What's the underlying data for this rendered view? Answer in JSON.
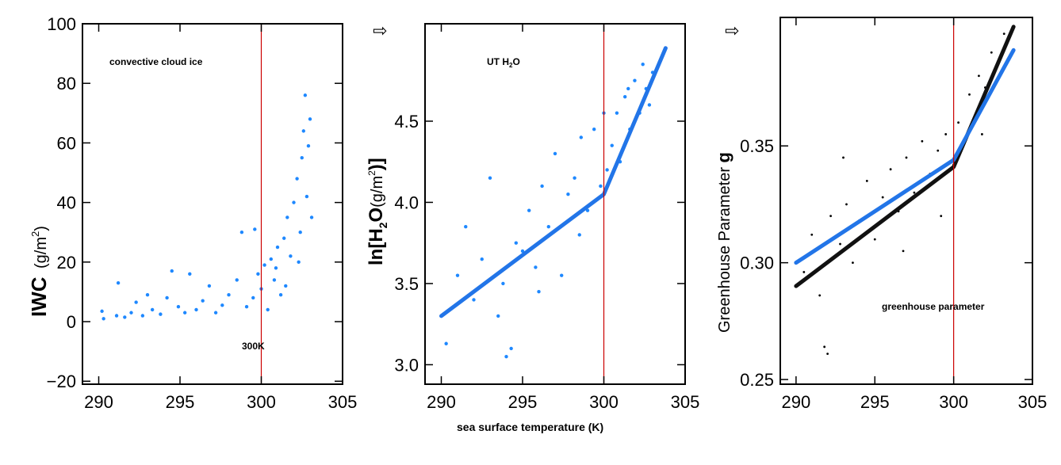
{
  "colors": {
    "scatter_blue": "#1e88ff",
    "fit_blue": "#2275e8",
    "fit_black": "#111111",
    "ref_line": "#cc0000",
    "points_black": "#000000"
  },
  "chart_data": [
    {
      "type": "scatter",
      "title": "",
      "annotation": "convective cloud ice",
      "ref_label": "300K",
      "ylabel_main": "IWC",
      "ylabel_unit": "(g/m",
      "ylabel_sup": "2",
      "ylabel_close": ")",
      "xlabel": "",
      "xlim": [
        289,
        305
      ],
      "ylim": [
        -21,
        100
      ],
      "xticks": [
        290,
        295,
        300,
        305
      ],
      "xtick_labels": [
        "290",
        "295",
        "300",
        "305"
      ],
      "yticks": [
        -20,
        0,
        20,
        40,
        60,
        80,
        100
      ],
      "ytick_labels": [
        "−20",
        "0",
        "20",
        "40",
        "60",
        "80",
        "100"
      ],
      "ref_x": 300,
      "series": [
        {
          "marker": "blue-dot",
          "points": [
            [
              290.2,
              3.5
            ],
            [
              290.3,
              1.0
            ],
            [
              291.2,
              13.0
            ],
            [
              291.1,
              2.0
            ],
            [
              291.6,
              1.5
            ],
            [
              292.0,
              3.0
            ],
            [
              292.3,
              6.5
            ],
            [
              292.7,
              2.0
            ],
            [
              293.0,
              9.0
            ],
            [
              293.3,
              4.0
            ],
            [
              293.8,
              2.5
            ],
            [
              294.2,
              8.0
            ],
            [
              294.5,
              17.0
            ],
            [
              294.9,
              5.0
            ],
            [
              295.3,
              3.0
            ],
            [
              295.6,
              16.0
            ],
            [
              296.0,
              4.0
            ],
            [
              296.4,
              7.0
            ],
            [
              296.8,
              12.0
            ],
            [
              297.2,
              3.0
            ],
            [
              297.6,
              5.5
            ],
            [
              298.0,
              9.0
            ],
            [
              298.5,
              14.0
            ],
            [
              298.8,
              30.0
            ],
            [
              299.1,
              5.0
            ],
            [
              299.5,
              8.0
            ],
            [
              299.8,
              16.0
            ],
            [
              300.0,
              11.0
            ],
            [
              300.2,
              19.0
            ],
            [
              300.4,
              4.0
            ],
            [
              300.6,
              21.0
            ],
            [
              300.8,
              14.0
            ],
            [
              301.0,
              25.0
            ],
            [
              301.2,
              9.0
            ],
            [
              301.4,
              28.0
            ],
            [
              301.6,
              35.0
            ],
            [
              301.8,
              22.0
            ],
            [
              302.0,
              40.0
            ],
            [
              302.2,
              48.0
            ],
            [
              302.4,
              30.0
            ],
            [
              302.5,
              55.0
            ],
            [
              302.6,
              64.0
            ],
            [
              302.7,
              76.0
            ],
            [
              302.8,
              42.0
            ],
            [
              302.9,
              59.0
            ],
            [
              303.0,
              68.0
            ],
            [
              303.1,
              35.0
            ],
            [
              299.6,
              31.0
            ],
            [
              300.9,
              18.0
            ],
            [
              301.5,
              12.0
            ],
            [
              302.3,
              20.0
            ]
          ]
        }
      ]
    },
    {
      "type": "scatter",
      "title": "",
      "annotation": "UT H",
      "annotation_sub": "2",
      "annotation_end": "O",
      "ylabel_a": "ln[H",
      "ylabel_sub": "2",
      "ylabel_b": "O",
      "ylabel_c": "(g/m",
      "ylabel_sup": "2",
      "ylabel_d": ")]",
      "xlabel": "sea surface temperature (K)",
      "xlim": [
        289,
        305
      ],
      "ylim": [
        2.88,
        5.1
      ],
      "xticks": [
        290,
        295,
        300,
        305
      ],
      "xtick_labels": [
        "290",
        "295",
        "300",
        "305"
      ],
      "yticks": [
        3.0,
        3.5,
        4.0,
        4.5
      ],
      "ytick_labels": [
        "3.0",
        "3.5",
        "4.0",
        "4.5"
      ],
      "ref_x": 300,
      "series": [
        {
          "name": "",
          "marker": "blue-dot",
          "points": [
            [
              290.3,
              3.13
            ],
            [
              291.0,
              3.55
            ],
            [
              291.5,
              3.85
            ],
            [
              292.0,
              3.4
            ],
            [
              292.5,
              3.65
            ],
            [
              293.0,
              4.15
            ],
            [
              293.5,
              3.3
            ],
            [
              294.0,
              3.05
            ],
            [
              294.3,
              3.1
            ],
            [
              294.6,
              3.75
            ],
            [
              295.0,
              3.7
            ],
            [
              295.4,
              3.95
            ],
            [
              295.8,
              3.6
            ],
            [
              296.2,
              4.1
            ],
            [
              296.6,
              3.85
            ],
            [
              297.0,
              4.3
            ],
            [
              297.4,
              3.55
            ],
            [
              297.8,
              4.05
            ],
            [
              298.2,
              4.15
            ],
            [
              298.6,
              4.4
            ],
            [
              299.0,
              3.95
            ],
            [
              299.4,
              4.45
            ],
            [
              299.8,
              4.1
            ],
            [
              300.0,
              4.55
            ],
            [
              300.2,
              4.2
            ],
            [
              300.5,
              4.35
            ],
            [
              300.8,
              4.55
            ],
            [
              301.0,
              4.25
            ],
            [
              301.3,
              4.65
            ],
            [
              301.6,
              4.45
            ],
            [
              301.9,
              4.75
            ],
            [
              302.2,
              4.55
            ],
            [
              302.4,
              4.85
            ],
            [
              302.6,
              4.7
            ],
            [
              302.8,
              4.6
            ],
            [
              303.0,
              4.8
            ],
            [
              293.8,
              3.5
            ],
            [
              296.0,
              3.45
            ],
            [
              298.5,
              3.8
            ],
            [
              301.5,
              4.7
            ]
          ]
        },
        {
          "name": "",
          "marker": "blue-fit",
          "points": [
            [
              290.0,
              3.3
            ],
            [
              300.0,
              4.05
            ],
            [
              303.8,
              4.95
            ]
          ]
        }
      ]
    },
    {
      "type": "scatter",
      "title": "",
      "annotation": "greenhouse parameter",
      "ylabel": "Greenhouse Parameter ",
      "ylabel_bold": "g",
      "xlabel": "",
      "xlim": [
        289,
        305
      ],
      "ylim": [
        0.248,
        0.405
      ],
      "xticks": [
        290,
        295,
        300,
        305
      ],
      "xtick_labels": [
        "290",
        "295",
        "300",
        "305"
      ],
      "yticks": [
        0.25,
        0.3,
        0.35
      ],
      "ytick_labels": [
        "0.25",
        "0.30",
        "0.35"
      ],
      "ref_x": 300,
      "series": [
        {
          "name": "",
          "marker": "black-dot",
          "points": [
            [
              290.5,
              0.296
            ],
            [
              291.0,
              0.312
            ],
            [
              291.5,
              0.286
            ],
            [
              291.8,
              0.264
            ],
            [
              292.0,
              0.261
            ],
            [
              292.2,
              0.32
            ],
            [
              292.8,
              0.308
            ],
            [
              293.2,
              0.325
            ],
            [
              293.6,
              0.3
            ],
            [
              294.0,
              0.318
            ],
            [
              294.5,
              0.335
            ],
            [
              295.0,
              0.31
            ],
            [
              295.5,
              0.328
            ],
            [
              296.0,
              0.34
            ],
            [
              296.5,
              0.322
            ],
            [
              297.0,
              0.345
            ],
            [
              297.5,
              0.33
            ],
            [
              298.0,
              0.352
            ],
            [
              298.5,
              0.338
            ],
            [
              299.0,
              0.348
            ],
            [
              299.5,
              0.355
            ],
            [
              300.0,
              0.342
            ],
            [
              300.3,
              0.36
            ],
            [
              300.6,
              0.35
            ],
            [
              301.0,
              0.372
            ],
            [
              301.3,
              0.362
            ],
            [
              301.6,
              0.38
            ],
            [
              302.0,
              0.375
            ],
            [
              302.4,
              0.39
            ],
            [
              302.8,
              0.385
            ],
            [
              303.2,
              0.398
            ],
            [
              293.0,
              0.345
            ],
            [
              296.8,
              0.305
            ],
            [
              299.2,
              0.32
            ],
            [
              301.8,
              0.355
            ]
          ]
        },
        {
          "name": "",
          "marker": "black-fit",
          "points": [
            [
              290.0,
              0.29
            ],
            [
              300.0,
              0.341
            ],
            [
              303.8,
              0.401
            ]
          ]
        },
        {
          "name": "",
          "marker": "blue-fit",
          "points": [
            [
              290.0,
              0.3
            ],
            [
              300.0,
              0.344
            ],
            [
              303.8,
              0.391
            ]
          ]
        }
      ]
    }
  ]
}
